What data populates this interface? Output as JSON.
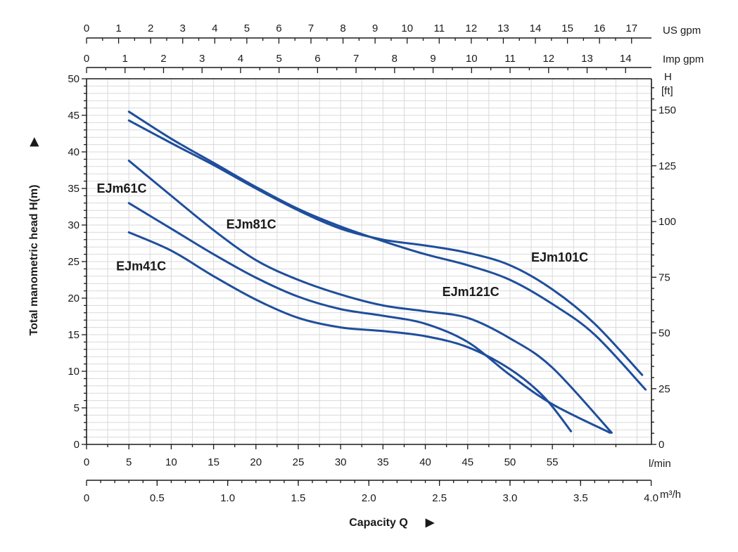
{
  "chart_data": {
    "type": "line",
    "grid": true,
    "ylabel": "Total manometric head H(m)",
    "xlabel": "Capacity Q",
    "x_unit_lmin": "l/min",
    "x_unit_m3h": "m³/h",
    "top_axis1_unit": "US gpm",
    "top_axis2_unit": "Imp gpm",
    "right_axis_unit_line1": "H",
    "right_axis_unit_line2": "[ft]",
    "xlim_lmin": [
      0,
      66.7
    ],
    "ylim_m": [
      0,
      50
    ],
    "yticks_m": [
      "0",
      "5",
      "10",
      "15",
      "20",
      "25",
      "30",
      "35",
      "40",
      "45",
      "50"
    ],
    "xticks_lmin": [
      "0",
      "5",
      "10",
      "15",
      "20",
      "25",
      "30",
      "35",
      "40",
      "45",
      "50",
      "55"
    ],
    "xticks_m3h": [
      "0",
      "0.5",
      "1.0",
      "1.5",
      "2.0",
      "2.5",
      "3.0",
      "3.5",
      "4.0"
    ],
    "xticks_usgpm": [
      "0",
      "1",
      "2",
      "3",
      "4",
      "5",
      "6",
      "7",
      "8",
      "9",
      "10",
      "11",
      "12",
      "13",
      "14",
      "15",
      "16",
      "17"
    ],
    "xticks_impgpm": [
      "0",
      "1",
      "2",
      "3",
      "4",
      "5",
      "6",
      "7",
      "8",
      "9",
      "10",
      "11",
      "12",
      "13",
      "14"
    ],
    "yticks_ft": [
      "0",
      "25",
      "50",
      "75",
      "100",
      "125",
      "150"
    ],
    "curve_color": "#1f4e9c",
    "series": [
      {
        "name": "EJm41C",
        "x": [
          5,
          10,
          15,
          20,
          25,
          30,
          35,
          40,
          45,
          50,
          54,
          57.2
        ],
        "y": [
          29,
          26.5,
          23,
          19.8,
          17.3,
          16,
          15.5,
          14.8,
          13.3,
          10.3,
          6.5,
          1.8
        ]
      },
      {
        "name": "EJm61C",
        "x": [
          5,
          10,
          15,
          20,
          25,
          30,
          35,
          40,
          45,
          50,
          55,
          61.8
        ],
        "y": [
          33,
          29.5,
          26,
          22.8,
          20.2,
          18.5,
          17.6,
          16.5,
          14,
          9.5,
          5.5,
          1.6
        ]
      },
      {
        "name": "EJm81C",
        "x": [
          5,
          10,
          15,
          20,
          25,
          30,
          35,
          40,
          45,
          50,
          55,
          62
        ],
        "y": [
          38.8,
          34,
          29.3,
          25.2,
          22.5,
          20.5,
          19,
          18.2,
          17.3,
          14.5,
          10.5,
          1.6
        ]
      },
      {
        "name": "EJm101C",
        "x": [
          5,
          10,
          15,
          20,
          25,
          30,
          35,
          40,
          45,
          50,
          55,
          60,
          65.6
        ],
        "y": [
          44.3,
          41.2,
          38.2,
          35,
          32,
          29.5,
          28,
          27.2,
          26.2,
          24.5,
          21.2,
          16.5,
          9.5
        ]
      },
      {
        "name": "EJm121C",
        "x": [
          5,
          10,
          15,
          20,
          25,
          30,
          35,
          40,
          45,
          50,
          55,
          60,
          66
        ],
        "y": [
          45.5,
          41.8,
          38.5,
          35.2,
          32.2,
          29.8,
          27.8,
          26,
          24.5,
          22.5,
          19.2,
          15,
          7.5
        ]
      }
    ]
  }
}
